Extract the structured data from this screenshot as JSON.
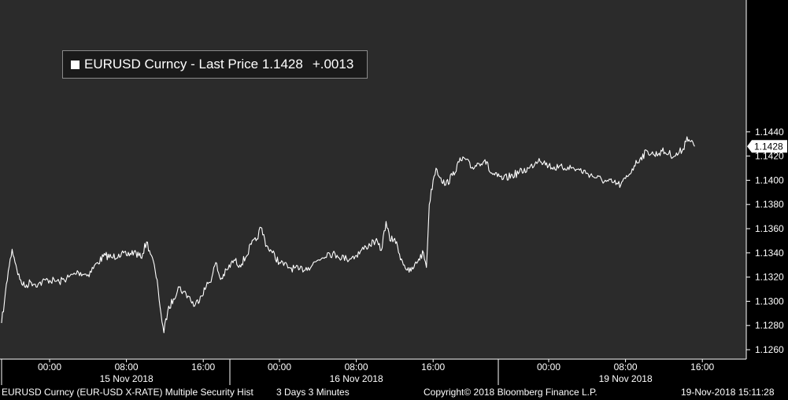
{
  "chart_data": {
    "type": "line",
    "title": "",
    "ylim": [
      1.1252,
      1.1452
    ],
    "y_ticks": [
      "1.1260",
      "1.1280",
      "1.1300",
      "1.1320",
      "1.1340",
      "1.1360",
      "1.1380",
      "1.1400",
      "1.1420",
      "1.1440"
    ],
    "last_price_label": "1.1428",
    "line_color": "#ffffff",
    "background_color": "#2b2b2b",
    "x_time_labels": [
      {
        "label": "00:00",
        "day": 0,
        "hour": 0
      },
      {
        "label": "08:00",
        "day": 0,
        "hour": 8
      },
      {
        "label": "16:00",
        "day": 0,
        "hour": 16
      },
      {
        "label": "00:00",
        "day": 1,
        "hour": 0
      },
      {
        "label": "08:00",
        "day": 1,
        "hour": 8
      },
      {
        "label": "16:00",
        "day": 1,
        "hour": 16
      },
      {
        "label": "00:00",
        "day": 2,
        "hour": 0
      },
      {
        "label": "08:00",
        "day": 2,
        "hour": 8
      },
      {
        "label": "16:00",
        "day": 2,
        "hour": 16
      }
    ],
    "x_date_labels": [
      {
        "label": "15 Nov 2018",
        "day": 0
      },
      {
        "label": "16 Nov 2018",
        "day": 1
      },
      {
        "label": "19 Nov 2018",
        "day": 2
      }
    ],
    "series": [
      {
        "values": [
          {
            "day": 0,
            "hour": -5.0,
            "price": 1.1282
          },
          {
            "day": 0,
            "hour": -4.7,
            "price": 1.13
          },
          {
            "day": 0,
            "hour": -4.3,
            "price": 1.1325
          },
          {
            "day": 0,
            "hour": -3.9,
            "price": 1.1343
          },
          {
            "day": 0,
            "hour": -3.5,
            "price": 1.133
          },
          {
            "day": 0,
            "hour": -3.1,
            "price": 1.1318
          },
          {
            "day": 0,
            "hour": -2.6,
            "price": 1.1312
          },
          {
            "day": 0,
            "hour": -2.0,
            "price": 1.1316
          },
          {
            "day": 0,
            "hour": -1.2,
            "price": 1.1314
          },
          {
            "day": 0,
            "hour": -0.2,
            "price": 1.1318
          },
          {
            "day": 0,
            "hour": 1.0,
            "price": 1.1316
          },
          {
            "day": 0,
            "hour": 2.0,
            "price": 1.132
          },
          {
            "day": 0,
            "hour": 3.0,
            "price": 1.1324
          },
          {
            "day": 0,
            "hour": 4.0,
            "price": 1.1322
          },
          {
            "day": 0,
            "hour": 5.0,
            "price": 1.1332
          },
          {
            "day": 0,
            "hour": 5.8,
            "price": 1.1338
          },
          {
            "day": 0,
            "hour": 6.5,
            "price": 1.1336
          },
          {
            "day": 0,
            "hour": 7.2,
            "price": 1.1339
          },
          {
            "day": 0,
            "hour": 8.0,
            "price": 1.1338
          },
          {
            "day": 0,
            "hour": 8.8,
            "price": 1.1341
          },
          {
            "day": 0,
            "hour": 9.5,
            "price": 1.1336
          },
          {
            "day": 0,
            "hour": 10.1,
            "price": 1.1349
          },
          {
            "day": 0,
            "hour": 10.6,
            "price": 1.1338
          },
          {
            "day": 0,
            "hour": 11.0,
            "price": 1.1325
          },
          {
            "day": 0,
            "hour": 11.3,
            "price": 1.131
          },
          {
            "day": 0,
            "hour": 11.6,
            "price": 1.129
          },
          {
            "day": 0,
            "hour": 11.9,
            "price": 1.1274
          },
          {
            "day": 0,
            "hour": 12.3,
            "price": 1.1292
          },
          {
            "day": 0,
            "hour": 12.9,
            "price": 1.1302
          },
          {
            "day": 0,
            "hour": 13.4,
            "price": 1.1312
          },
          {
            "day": 0,
            "hour": 13.9,
            "price": 1.1308
          },
          {
            "day": 0,
            "hour": 14.5,
            "price": 1.1304
          },
          {
            "day": 0,
            "hour": 15.1,
            "price": 1.1296
          },
          {
            "day": 0,
            "hour": 15.7,
            "price": 1.1304
          },
          {
            "day": 0,
            "hour": 16.3,
            "price": 1.1312
          },
          {
            "day": 0,
            "hour": 16.9,
            "price": 1.132
          },
          {
            "day": 0,
            "hour": 17.3,
            "price": 1.1332
          },
          {
            "day": 0,
            "hour": 17.8,
            "price": 1.1318
          },
          {
            "day": 0,
            "hour": 18.5,
            "price": 1.1326
          },
          {
            "day": 0,
            "hour": 19.2,
            "price": 1.1334
          },
          {
            "day": 0,
            "hour": 19.8,
            "price": 1.133
          },
          {
            "day": 0,
            "hour": 20.4,
            "price": 1.1336
          },
          {
            "day": 0,
            "hour": 21.0,
            "price": 1.1347
          },
          {
            "day": 0,
            "hour": 21.5,
            "price": 1.135
          },
          {
            "day": 0,
            "hour": 22.0,
            "price": 1.1361
          },
          {
            "day": 0,
            "hour": 22.6,
            "price": 1.1346
          },
          {
            "day": 0,
            "hour": 23.2,
            "price": 1.134
          },
          {
            "day": 1,
            "hour": 0.0,
            "price": 1.1332
          },
          {
            "day": 1,
            "hour": 1.0,
            "price": 1.1328
          },
          {
            "day": 1,
            "hour": 2.0,
            "price": 1.1326
          },
          {
            "day": 1,
            "hour": 3.0,
            "price": 1.1328
          },
          {
            "day": 1,
            "hour": 4.0,
            "price": 1.1334
          },
          {
            "day": 1,
            "hour": 5.0,
            "price": 1.134
          },
          {
            "day": 1,
            "hour": 6.0,
            "price": 1.1338
          },
          {
            "day": 1,
            "hour": 7.0,
            "price": 1.1335
          },
          {
            "day": 1,
            "hour": 8.0,
            "price": 1.1338
          },
          {
            "day": 1,
            "hour": 9.0,
            "price": 1.1345
          },
          {
            "day": 1,
            "hour": 10.0,
            "price": 1.135
          },
          {
            "day": 1,
            "hour": 10.6,
            "price": 1.1342
          },
          {
            "day": 1,
            "hour": 11.1,
            "price": 1.1366
          },
          {
            "day": 1,
            "hour": 11.5,
            "price": 1.135
          },
          {
            "day": 1,
            "hour": 12.0,
            "price": 1.1352
          },
          {
            "day": 1,
            "hour": 12.5,
            "price": 1.1339
          },
          {
            "day": 1,
            "hour": 13.0,
            "price": 1.133
          },
          {
            "day": 1,
            "hour": 13.5,
            "price": 1.1324
          },
          {
            "day": 1,
            "hour": 14.0,
            "price": 1.1328
          },
          {
            "day": 1,
            "hour": 14.5,
            "price": 1.1335
          },
          {
            "day": 1,
            "hour": 15.0,
            "price": 1.134
          },
          {
            "day": 1,
            "hour": 15.3,
            "price": 1.1328
          },
          {
            "day": 1,
            "hour": 15.6,
            "price": 1.138
          },
          {
            "day": 1,
            "hour": 16.0,
            "price": 1.14
          },
          {
            "day": 1,
            "hour": 16.3,
            "price": 1.141
          },
          {
            "day": 1,
            "hour": 16.8,
            "price": 1.1402
          },
          {
            "day": 1,
            "hour": 17.3,
            "price": 1.1396
          },
          {
            "day": 1,
            "hour": 18.0,
            "price": 1.1404
          },
          {
            "day": 1,
            "hour": 18.7,
            "price": 1.1415
          },
          {
            "day": 1,
            "hour": 19.3,
            "price": 1.1418
          },
          {
            "day": 1,
            "hour": 20.0,
            "price": 1.141
          },
          {
            "day": 1,
            "hour": 20.7,
            "price": 1.1414
          },
          {
            "day": 1,
            "hour": 21.4,
            "price": 1.1417
          },
          {
            "day": 1,
            "hour": 22.0,
            "price": 1.1406
          },
          {
            "day": 1,
            "hour": 22.7,
            "price": 1.1403
          },
          {
            "day": 1,
            "hour": 23.3,
            "price": 1.1401
          },
          {
            "day": 2,
            "hour": -2.0,
            "price": 1.141
          },
          {
            "day": 2,
            "hour": -1.0,
            "price": 1.1418
          },
          {
            "day": 2,
            "hour": 0.0,
            "price": 1.1412
          },
          {
            "day": 2,
            "hour": 1.0,
            "price": 1.141
          },
          {
            "day": 2,
            "hour": 2.0,
            "price": 1.1411
          },
          {
            "day": 2,
            "hour": 3.0,
            "price": 1.1409
          },
          {
            "day": 2,
            "hour": 4.0,
            "price": 1.1406
          },
          {
            "day": 2,
            "hour": 5.0,
            "price": 1.1402
          },
          {
            "day": 2,
            "hour": 6.0,
            "price": 1.1399
          },
          {
            "day": 2,
            "hour": 6.7,
            "price": 1.1398
          },
          {
            "day": 2,
            "hour": 7.5,
            "price": 1.1396
          },
          {
            "day": 2,
            "hour": 8.2,
            "price": 1.1403
          },
          {
            "day": 2,
            "hour": 8.9,
            "price": 1.1412
          },
          {
            "day": 2,
            "hour": 9.6,
            "price": 1.1419
          },
          {
            "day": 2,
            "hour": 10.3,
            "price": 1.1424
          },
          {
            "day": 2,
            "hour": 11.0,
            "price": 1.1421
          },
          {
            "day": 2,
            "hour": 11.8,
            "price": 1.1424
          },
          {
            "day": 2,
            "hour": 12.5,
            "price": 1.1422
          },
          {
            "day": 2,
            "hour": 13.2,
            "price": 1.142
          },
          {
            "day": 2,
            "hour": 14.0,
            "price": 1.1426
          },
          {
            "day": 2,
            "hour": 14.4,
            "price": 1.1436
          },
          {
            "day": 2,
            "hour": 14.8,
            "price": 1.1432
          },
          {
            "day": 2,
            "hour": 15.2,
            "price": 1.1428
          }
        ]
      }
    ]
  },
  "legend": {
    "security": "EURUSD Curncy",
    "separator": "-",
    "field": "Last Price",
    "price": "1.1428",
    "change": "+.0013"
  },
  "footer": {
    "security_info": "EURUSD Curncy (EUR-USD X-RATE) Multiple Security Hist",
    "period": "3 Days 3 Minutes",
    "copyright": "Copyright© 2018 Bloomberg Finance L.P.",
    "timestamp": "19-Nov-2018 15:11:28"
  }
}
